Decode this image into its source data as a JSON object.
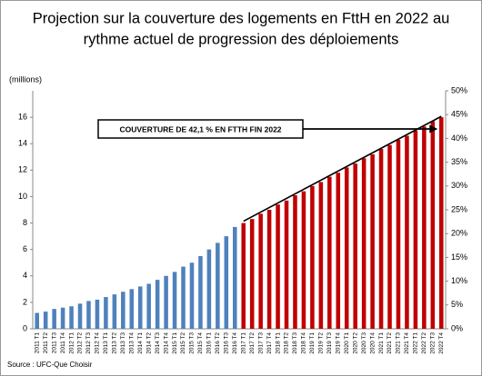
{
  "chart_data": {
    "type": "bar",
    "title": [
      "Projection sur la couverture des logements en FttH en 2022 au",
      "rythme actuel de progression des déploiements"
    ],
    "y_label": "(millions)",
    "annotation": "COUVERTURE DE 42,1 % EN FTTH FIN 2022",
    "source": "Source : UFC-Que Choisir",
    "categories": [
      "2011 T1",
      "2011 T2",
      "2011 T3",
      "2011 T4",
      "2012 T1",
      "2012 T2",
      "2012 T3",
      "2012 T4",
      "2013 T1",
      "2013 T2",
      "2013 T3",
      "2013 T4",
      "2014 T1",
      "2014 T2",
      "2014 T3",
      "2014 T4",
      "2015 T1",
      "2015 T2",
      "2015 T3",
      "2015 T4",
      "2016 T1",
      "2016 T2",
      "2016 T3",
      "2016 T4",
      "2017 T1",
      "2017 T2",
      "2017 T3",
      "2017 T4",
      "2018 T1",
      "2018 T2",
      "2018 T3",
      "2018 T4",
      "2019 T1",
      "2019 T2",
      "2019 T3",
      "2019 T4",
      "2020 T1",
      "2020 T2",
      "2020 T3",
      "2020 T4",
      "2021 T1",
      "2021 T2",
      "2021 T3",
      "2021 T4",
      "2022 T1",
      "2022 T2",
      "2022 T3",
      "2022 T4"
    ],
    "values": [
      1.2,
      1.3,
      1.5,
      1.6,
      1.7,
      1.9,
      2.1,
      2.2,
      2.4,
      2.6,
      2.8,
      3.0,
      3.2,
      3.4,
      3.7,
      4.0,
      4.3,
      4.7,
      5.0,
      5.5,
      6.0,
      6.5,
      7.0,
      7.7,
      8.0,
      8.3,
      8.7,
      9.0,
      9.4,
      9.7,
      10.1,
      10.4,
      10.8,
      11.1,
      11.5,
      11.8,
      12.2,
      12.5,
      12.9,
      13.2,
      13.6,
      13.9,
      14.3,
      14.6,
      15.0,
      15.3,
      15.7,
      16.0
    ],
    "colors": [
      "#4f81bd",
      "#4f81bd",
      "#4f81bd",
      "#4f81bd",
      "#4f81bd",
      "#4f81bd",
      "#4f81bd",
      "#4f81bd",
      "#4f81bd",
      "#4f81bd",
      "#4f81bd",
      "#4f81bd",
      "#4f81bd",
      "#4f81bd",
      "#4f81bd",
      "#4f81bd",
      "#4f81bd",
      "#4f81bd",
      "#4f81bd",
      "#4f81bd",
      "#4f81bd",
      "#4f81bd",
      "#4f81bd",
      "#4f81bd",
      "#c00000",
      "#c00000",
      "#c00000",
      "#c00000",
      "#c00000",
      "#c00000",
      "#c00000",
      "#c00000",
      "#c00000",
      "#c00000",
      "#c00000",
      "#c00000",
      "#c00000",
      "#c00000",
      "#c00000",
      "#c00000",
      "#c00000",
      "#c00000",
      "#c00000",
      "#c00000",
      "#c00000",
      "#c00000",
      "#c00000",
      "#c00000"
    ],
    "ylim": [
      0,
      18
    ],
    "yticks": [
      0,
      2,
      4,
      6,
      8,
      10,
      12,
      14,
      16
    ],
    "y2lim": [
      0,
      50
    ],
    "y2ticks": [
      {
        "value": 0,
        "label": "0%"
      },
      {
        "value": 5,
        "label": "5%"
      },
      {
        "value": 10,
        "label": "10%"
      },
      {
        "value": 15,
        "label": "15%"
      },
      {
        "value": 20,
        "label": "20%"
      },
      {
        "value": 25,
        "label": "25%"
      },
      {
        "value": 30,
        "label": "30%"
      },
      {
        "value": 35,
        "label": "35%"
      },
      {
        "value": 40,
        "label": "40%"
      },
      {
        "value": 45,
        "label": "45%"
      },
      {
        "value": 50,
        "label": "50%"
      }
    ]
  }
}
